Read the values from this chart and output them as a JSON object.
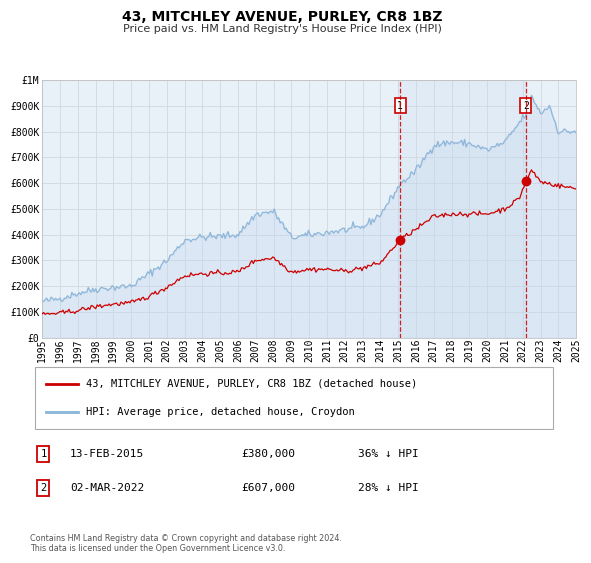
{
  "title": "43, MITCHLEY AVENUE, PURLEY, CR8 1BZ",
  "subtitle": "Price paid vs. HM Land Registry's House Price Index (HPI)",
  "ylim": [
    0,
    1000000
  ],
  "xlim_start": 1995.0,
  "xlim_end": 2025.0,
  "background_color": "#ffffff",
  "plot_bg_color": "#e8f0f8",
  "grid_color": "#d0d8e0",
  "hpi_color": "#8ab4d8",
  "hpi_fill_color": "#c5d8ed",
  "price_color": "#cc0000",
  "vline1_color": "#cc0000",
  "vline2_color": "#cc0000",
  "span_color": "#c8d8ee",
  "marker1_date": 2015.12,
  "marker1_price": 380000,
  "marker2_date": 2022.17,
  "marker2_price": 607000,
  "legend1_label": "43, MITCHLEY AVENUE, PURLEY, CR8 1BZ (detached house)",
  "legend2_label": "HPI: Average price, detached house, Croydon",
  "footer": "Contains HM Land Registry data © Crown copyright and database right 2024.\nThis data is licensed under the Open Government Licence v3.0.",
  "yticks": [
    0,
    100000,
    200000,
    300000,
    400000,
    500000,
    600000,
    700000,
    800000,
    900000,
    1000000
  ],
  "ytick_labels": [
    "£0",
    "£100K",
    "£200K",
    "£300K",
    "£400K",
    "£500K",
    "£600K",
    "£700K",
    "£800K",
    "£900K",
    "£1M"
  ],
  "xtick_years": [
    1995,
    1996,
    1997,
    1998,
    1999,
    2000,
    2001,
    2002,
    2003,
    2004,
    2005,
    2006,
    2007,
    2008,
    2009,
    2010,
    2011,
    2012,
    2013,
    2014,
    2015,
    2016,
    2017,
    2018,
    2019,
    2020,
    2021,
    2022,
    2023,
    2024,
    2025
  ],
  "title_fontsize": 10,
  "subtitle_fontsize": 8,
  "tick_fontsize": 7,
  "legend_fontsize": 7.5,
  "annot_fontsize": 8
}
